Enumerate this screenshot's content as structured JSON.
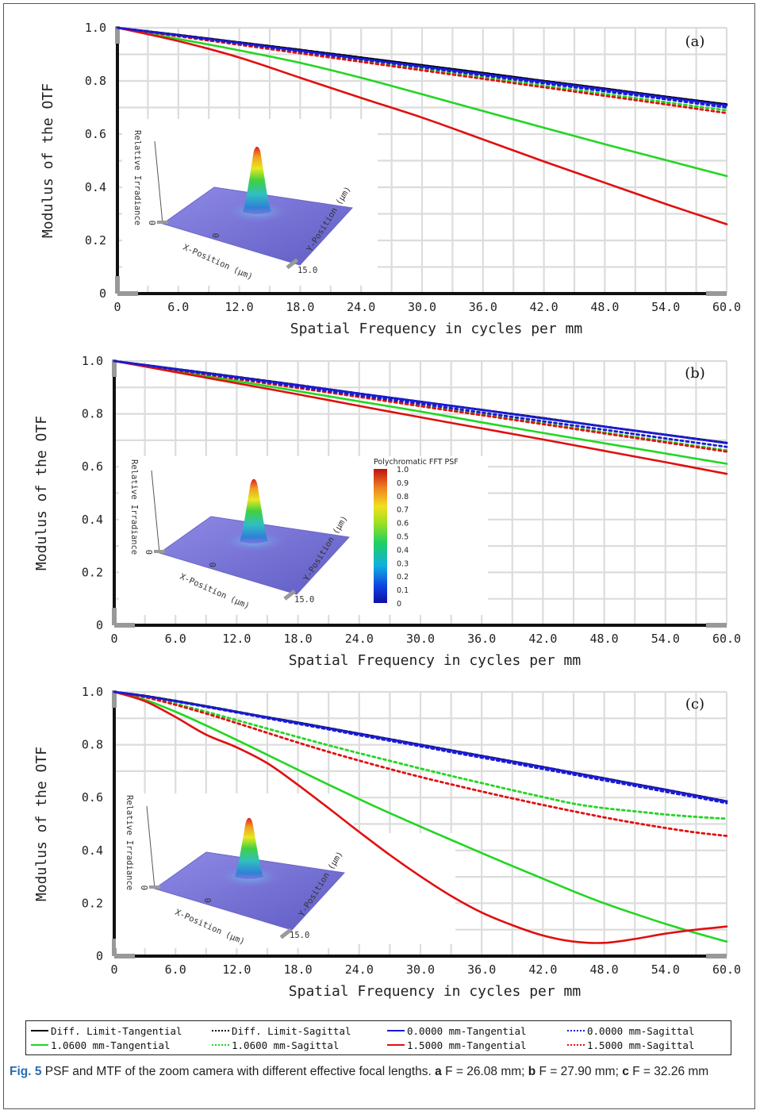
{
  "chart_data": [
    {
      "type": "line",
      "panel_label": "(a)",
      "xlabel": "Spatial Frequency in cycles per mm",
      "ylabel": "Modulus of the OTF",
      "xlim": [
        0,
        60
      ],
      "ylim": [
        0,
        1.0
      ],
      "xticks": [
        "0",
        "6.0",
        "12.0",
        "18.0",
        "24.0",
        "30.0",
        "36.0",
        "42.0",
        "48.0",
        "54.0",
        "60.0"
      ],
      "yticks": [
        "0",
        "0.2",
        "0.4",
        "0.6",
        "0.8",
        "1.0"
      ],
      "x": [
        0,
        6,
        12,
        18,
        24,
        30,
        36,
        42,
        48,
        54,
        60
      ],
      "series": [
        {
          "name": "Diff. Limit-Tangential",
          "color": "#000000",
          "style": "solid",
          "values": [
            1.0,
            0.973,
            0.945,
            0.917,
            0.888,
            0.859,
            0.83,
            0.8,
            0.771,
            0.741,
            0.712
          ]
        },
        {
          "name": "Diff. Limit-Sagittal",
          "color": "#000000",
          "style": "dotted",
          "values": [
            1.0,
            0.973,
            0.945,
            0.917,
            0.888,
            0.859,
            0.83,
            0.8,
            0.771,
            0.741,
            0.712
          ]
        },
        {
          "name": "0.0000 mm-Tangential",
          "color": "#1a1ad6",
          "style": "solid",
          "values": [
            1.0,
            0.972,
            0.943,
            0.914,
            0.884,
            0.855,
            0.826,
            0.797,
            0.768,
            0.738,
            0.708
          ]
        },
        {
          "name": "0.0000 mm-Sagittal",
          "color": "#1a1ad6",
          "style": "dotted",
          "values": [
            1.0,
            0.971,
            0.941,
            0.911,
            0.881,
            0.851,
            0.821,
            0.791,
            0.761,
            0.731,
            0.7
          ]
        },
        {
          "name": "1.0600 mm-Tangential",
          "color": "#22d622",
          "style": "solid",
          "values": [
            1.0,
            0.958,
            0.915,
            0.868,
            0.812,
            0.75,
            0.687,
            0.624,
            0.562,
            0.502,
            0.442
          ]
        },
        {
          "name": "1.0600 mm-Sagittal",
          "color": "#22d622",
          "style": "dotted",
          "values": [
            1.0,
            0.969,
            0.938,
            0.907,
            0.876,
            0.845,
            0.814,
            0.782,
            0.751,
            0.72,
            0.689
          ]
        },
        {
          "name": "1.5000 mm-Tangential",
          "color": "#e01010",
          "style": "solid",
          "values": [
            1.0,
            0.95,
            0.888,
            0.812,
            0.736,
            0.662,
            0.58,
            0.497,
            0.417,
            0.337,
            0.261
          ]
        },
        {
          "name": "1.5000 mm-Sagittal",
          "color": "#e01010",
          "style": "dotted",
          "values": [
            1.0,
            0.968,
            0.936,
            0.904,
            0.872,
            0.84,
            0.808,
            0.776,
            0.744,
            0.712,
            0.679
          ]
        }
      ]
    },
    {
      "type": "line",
      "panel_label": "(b)",
      "xlabel": "Spatial Frequency in cycles per mm",
      "ylabel": "Modulus of the OTF",
      "xlim": [
        0,
        60
      ],
      "ylim": [
        0,
        1.0
      ],
      "xticks": [
        "0",
        "6.0",
        "12.0",
        "18.0",
        "24.0",
        "30.0",
        "36.0",
        "42.0",
        "48.0",
        "54.0",
        "60.0"
      ],
      "yticks": [
        "0",
        "0.2",
        "0.4",
        "0.6",
        "0.8",
        "1.0"
      ],
      "x": [
        0,
        6,
        12,
        18,
        24,
        30,
        36,
        42,
        48,
        54,
        60
      ],
      "series": [
        {
          "name": "Diff. Limit-Tangential",
          "color": "#000000",
          "style": "solid",
          "values": [
            1.0,
            0.97,
            0.94,
            0.909,
            0.877,
            0.846,
            0.815,
            0.784,
            0.752,
            0.721,
            0.69
          ]
        },
        {
          "name": "Diff. Limit-Sagittal",
          "color": "#000000",
          "style": "dotted",
          "values": [
            1.0,
            0.97,
            0.94,
            0.909,
            0.877,
            0.846,
            0.815,
            0.784,
            0.752,
            0.721,
            0.69
          ]
        },
        {
          "name": "0.0000 mm-Tangential",
          "color": "#1a1ad6",
          "style": "solid",
          "values": [
            1.0,
            0.97,
            0.939,
            0.908,
            0.877,
            0.846,
            0.815,
            0.783,
            0.752,
            0.721,
            0.689
          ]
        },
        {
          "name": "0.0000 mm-Sagittal",
          "color": "#1a1ad6",
          "style": "dotted",
          "values": [
            1.0,
            0.968,
            0.936,
            0.903,
            0.87,
            0.838,
            0.805,
            0.772,
            0.74,
            0.707,
            0.675
          ]
        },
        {
          "name": "1.0600 mm-Tangential",
          "color": "#22d622",
          "style": "solid",
          "values": [
            1.0,
            0.962,
            0.924,
            0.886,
            0.847,
            0.809,
            0.768,
            0.728,
            0.689,
            0.65,
            0.611
          ]
        },
        {
          "name": "1.0600 mm-Sagittal",
          "color": "#22d622",
          "style": "dotted",
          "values": [
            1.0,
            0.967,
            0.934,
            0.9,
            0.866,
            0.832,
            0.798,
            0.764,
            0.73,
            0.696,
            0.662
          ]
        },
        {
          "name": "1.5000 mm-Tangential",
          "color": "#e01010",
          "style": "solid",
          "values": [
            1.0,
            0.958,
            0.916,
            0.874,
            0.83,
            0.787,
            0.745,
            0.703,
            0.66,
            0.617,
            0.573
          ]
        },
        {
          "name": "1.5000 mm-Sagittal",
          "color": "#e01010",
          "style": "dotted",
          "values": [
            1.0,
            0.966,
            0.932,
            0.898,
            0.864,
            0.829,
            0.795,
            0.761,
            0.726,
            0.692,
            0.657
          ]
        }
      ]
    },
    {
      "type": "line",
      "panel_label": "(c)",
      "xlabel": "Spatial Frequency in cycles per mm",
      "ylabel": "Modulus of the OTF",
      "xlim": [
        0,
        60
      ],
      "ylim": [
        0,
        1.0
      ],
      "xticks": [
        "0",
        "6.0",
        "12.0",
        "18.0",
        "24.0",
        "30.0",
        "36.0",
        "42.0",
        "48.0",
        "54.0",
        "60.0"
      ],
      "yticks": [
        "0",
        "0.2",
        "0.4",
        "0.6",
        "0.8",
        "1.0"
      ],
      "x": [
        0,
        3,
        6,
        9,
        12,
        15,
        18,
        21,
        24,
        27,
        30,
        33,
        36,
        39,
        42,
        45,
        48,
        51,
        54,
        57,
        60
      ],
      "series": [
        {
          "name": "Diff. Limit-Tangential",
          "color": "#000000",
          "style": "solid",
          "values": [
            1.0,
            0.985,
            0.966,
            0.946,
            0.925,
            0.904,
            0.884,
            0.863,
            0.842,
            0.821,
            0.8,
            0.779,
            0.758,
            0.737,
            0.716,
            0.694,
            0.673,
            0.651,
            0.63,
            0.608,
            0.586
          ]
        },
        {
          "name": "Diff. Limit-Sagittal",
          "color": "#000000",
          "style": "dotted",
          "values": [
            1.0,
            0.985,
            0.966,
            0.946,
            0.925,
            0.904,
            0.884,
            0.863,
            0.842,
            0.821,
            0.8,
            0.779,
            0.758,
            0.737,
            0.716,
            0.694,
            0.673,
            0.651,
            0.63,
            0.608,
            0.586
          ]
        },
        {
          "name": "0.0000 mm-Tangential",
          "color": "#1a1ad6",
          "style": "solid",
          "values": [
            1.0,
            0.984,
            0.965,
            0.945,
            0.924,
            0.903,
            0.883,
            0.862,
            0.841,
            0.82,
            0.799,
            0.778,
            0.757,
            0.736,
            0.715,
            0.693,
            0.672,
            0.65,
            0.629,
            0.607,
            0.585
          ]
        },
        {
          "name": "0.0000 mm-Sagittal",
          "color": "#1a1ad6",
          "style": "dotted",
          "values": [
            1.0,
            0.984,
            0.964,
            0.943,
            0.922,
            0.9,
            0.879,
            0.858,
            0.836,
            0.815,
            0.794,
            0.772,
            0.751,
            0.73,
            0.708,
            0.687,
            0.665,
            0.644,
            0.622,
            0.601,
            0.579
          ]
        },
        {
          "name": "1.0600 mm-Tangential",
          "color": "#22d622",
          "style": "solid",
          "values": [
            1.0,
            0.97,
            0.925,
            0.873,
            0.818,
            0.762,
            0.705,
            0.649,
            0.594,
            0.541,
            0.49,
            0.44,
            0.39,
            0.341,
            0.293,
            0.245,
            0.2,
            0.16,
            0.122,
            0.087,
            0.055
          ]
        },
        {
          "name": "1.0600 mm-Sagittal",
          "color": "#22d622",
          "style": "dotted",
          "values": [
            1.0,
            0.981,
            0.955,
            0.925,
            0.893,
            0.861,
            0.829,
            0.798,
            0.768,
            0.739,
            0.71,
            0.682,
            0.655,
            0.628,
            0.602,
            0.577,
            0.56,
            0.548,
            0.536,
            0.527,
            0.52
          ]
        },
        {
          "name": "1.5000 mm-Tangential",
          "color": "#e01010",
          "style": "solid",
          "values": [
            1.0,
            0.965,
            0.905,
            0.838,
            0.79,
            0.73,
            0.648,
            0.56,
            0.47,
            0.383,
            0.302,
            0.228,
            0.165,
            0.117,
            0.078,
            0.055,
            0.05,
            0.065,
            0.085,
            0.1,
            0.112
          ]
        },
        {
          "name": "1.5000 mm-Sagittal",
          "color": "#e01010",
          "style": "dotted",
          "values": [
            1.0,
            0.98,
            0.951,
            0.918,
            0.882,
            0.845,
            0.808,
            0.773,
            0.74,
            0.708,
            0.678,
            0.65,
            0.623,
            0.597,
            0.572,
            0.548,
            0.525,
            0.504,
            0.485,
            0.468,
            0.455
          ]
        }
      ]
    }
  ],
  "inset": {
    "zlabel": "Relative Irradiance",
    "xlabel": "X-Position (µm)",
    "ylabel": "Y-Position (µm)",
    "zero": "0",
    "edge": "15.0"
  },
  "colorbar": {
    "title": "Polychromatic FFT PSF",
    "ticks": [
      "1.0",
      "0.9",
      "0.8",
      "0.7",
      "0.6",
      "0.5",
      "0.4",
      "0.3",
      "0.2",
      "0.1",
      "0"
    ]
  },
  "legend": [
    {
      "label": "Diff. Limit-Tangential",
      "color": "#000000",
      "style": "solid"
    },
    {
      "label": "Diff. Limit-Sagittal",
      "color": "#000000",
      "style": "dotted"
    },
    {
      "label": "0.0000 mm-Tangential",
      "color": "#1a1ad6",
      "style": "solid"
    },
    {
      "label": "0.0000 mm-Sagittal",
      "color": "#1a1ad6",
      "style": "dotted"
    },
    {
      "label": "1.0600 mm-Tangential",
      "color": "#22d622",
      "style": "solid"
    },
    {
      "label": "1.0600 mm-Sagittal",
      "color": "#22d622",
      "style": "dotted"
    },
    {
      "label": "1.5000 mm-Tangential",
      "color": "#e01010",
      "style": "solid"
    },
    {
      "label": "1.5000 mm-Sagittal",
      "color": "#e01010",
      "style": "dotted"
    }
  ],
  "caption": {
    "fig": "Fig. 5",
    "text": " PSF and MTF of the zoom camera with different effective focal lengths. ",
    "a_label": "a",
    "a_text": " F = 26.08 mm; ",
    "b_label": "b",
    "b_text": " F = 27.90 mm; ",
    "c_label": "c",
    "c_text": " F = 32.26 mm"
  }
}
